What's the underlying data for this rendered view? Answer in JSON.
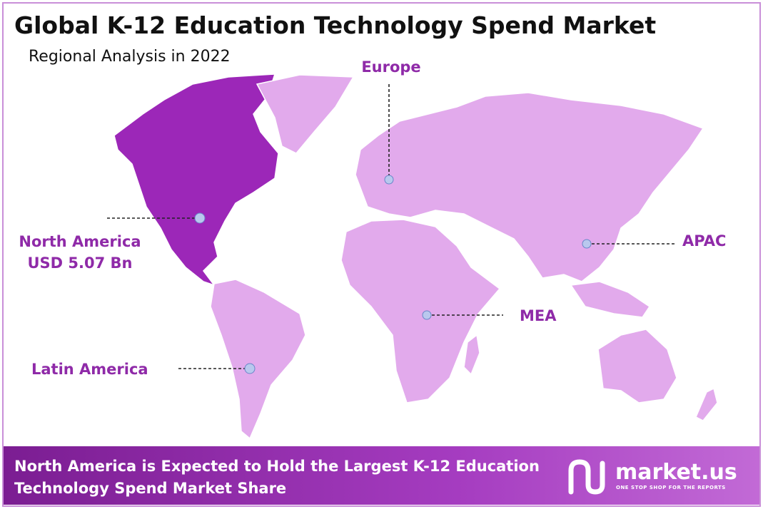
{
  "header": {
    "title": "Global K-12 Education Technology Spend Market",
    "subtitle": "Regional Analysis in 2022"
  },
  "regions": [
    {
      "label": "North America",
      "value_label": "USD 5.07 Bn"
    },
    {
      "label": "Europe"
    },
    {
      "label": "APAC"
    },
    {
      "label": "MEA"
    },
    {
      "label": "Latin America"
    }
  ],
  "footer": {
    "lines": [
      "North America is Expected to Hold the Largest K-12 Education",
      "Technology Spend Market Share"
    ]
  },
  "brand": {
    "name": "market.us",
    "tagline": "ONE STOP SHOP FOR THE REPORTS"
  }
}
